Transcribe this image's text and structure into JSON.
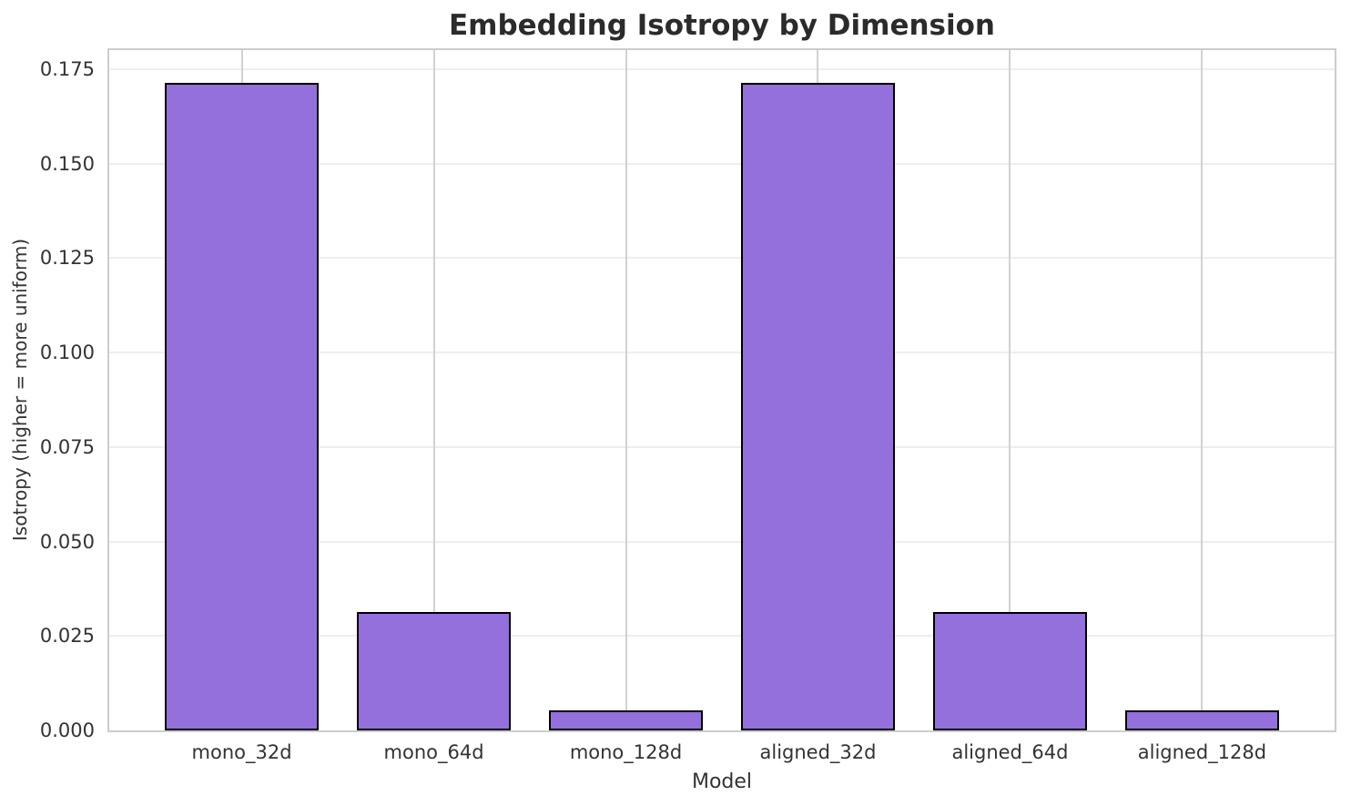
{
  "chart_data": {
    "type": "bar",
    "title": "Embedding Isotropy by Dimension",
    "xlabel": "Model",
    "ylabel": "Isotropy (higher = more uniform)",
    "categories": [
      "mono_32d",
      "mono_64d",
      "mono_128d",
      "aligned_32d",
      "aligned_64d",
      "aligned_128d"
    ],
    "values": [
      0.1714,
      0.0314,
      0.0053,
      0.1714,
      0.0314,
      0.0053
    ],
    "ylim": [
      0,
      0.18
    ],
    "yticks": [
      0.0,
      0.025,
      0.05,
      0.075,
      0.1,
      0.125,
      0.15,
      0.175
    ],
    "ytick_labels": [
      "0.000",
      "0.025",
      "0.050",
      "0.075",
      "0.100",
      "0.125",
      "0.150",
      "0.175"
    ],
    "grid": "both",
    "legend": "none",
    "bar_color": "#9370DB",
    "bar_edge_color": "#000000"
  }
}
